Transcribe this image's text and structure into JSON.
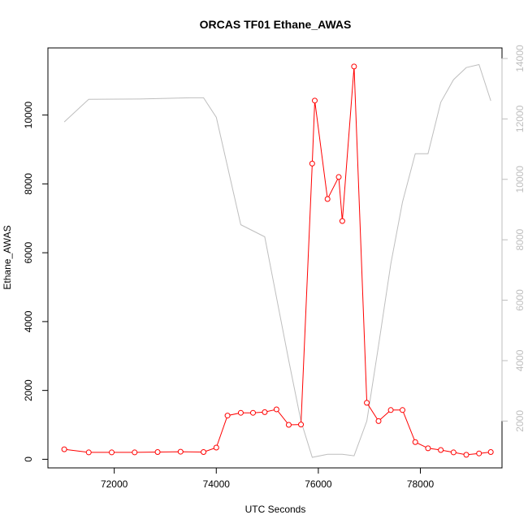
{
  "chart_data": {
    "type": "line",
    "title": "ORCAS TF01 Ethane_AWAS",
    "xlabel": "UTC Seconds",
    "ylabel": "Ethane_AWAS",
    "xlim": [
      70700,
      79600
    ],
    "ylim": [
      -250,
      11950
    ],
    "ylim_right": [
      450,
      14350
    ],
    "x_ticks": [
      72000,
      74000,
      76000,
      78000
    ],
    "y_ticks": [
      0,
      2000,
      4000,
      6000,
      8000,
      10000
    ],
    "y_ticks_right": [
      2000,
      4000,
      6000,
      8000,
      10000,
      12000,
      14000
    ],
    "series": [
      {
        "axis": "left",
        "color": "#ff0000",
        "style": "line+points",
        "x": [
          71020,
          71500,
          71950,
          72400,
          72850,
          73300,
          73750,
          74000,
          74220,
          74480,
          74720,
          74950,
          75180,
          75420,
          75660,
          75880,
          75930,
          76180,
          76400,
          76470,
          76700,
          76950,
          77180,
          77420,
          77650,
          77900,
          78150,
          78400,
          78650,
          78900,
          79150,
          79380
        ],
        "y": [
          290,
          200,
          200,
          200,
          210,
          220,
          210,
          340,
          1270,
          1350,
          1350,
          1370,
          1450,
          1000,
          1010,
          8590,
          10420,
          7560,
          8200,
          6920,
          11410,
          1640,
          1110,
          1430,
          1430,
          500,
          320,
          270,
          200,
          130,
          170,
          210
        ]
      },
      {
        "axis": "right",
        "color": "#bebebe",
        "style": "line",
        "x": [
          71020,
          71500,
          72500,
          73500,
          73750,
          74000,
          74480,
          74950,
          75420,
          75660,
          75880,
          76180,
          76470,
          76700,
          76950,
          77180,
          77420,
          77650,
          77900,
          78150,
          78400,
          78650,
          78900,
          79150,
          79380
        ],
        "y": [
          11900,
          12650,
          12660,
          12700,
          12700,
          12050,
          8500,
          8100,
          4000,
          2000,
          800,
          900,
          900,
          850,
          2000,
          4500,
          7200,
          9250,
          10850,
          10850,
          12550,
          13300,
          13700,
          13800,
          12600
        ]
      }
    ]
  }
}
